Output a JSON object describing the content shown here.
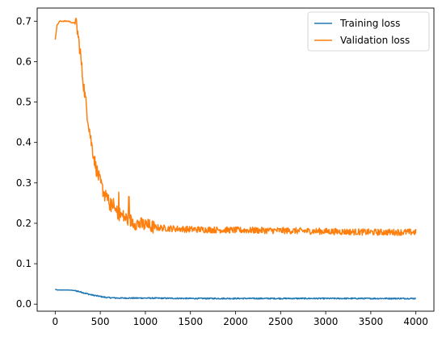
{
  "chart_data": {
    "type": "line",
    "title": "",
    "xlabel": "",
    "ylabel": "",
    "xlim": [
      -200,
      4200
    ],
    "ylim": [
      -0.0175,
      0.7325
    ],
    "xticks": [
      0,
      500,
      1000,
      1500,
      2000,
      2500,
      3000,
      3500,
      4000
    ],
    "xtick_labels": [
      "0",
      "500",
      "1000",
      "1500",
      "2000",
      "2500",
      "3000",
      "3500",
      "4000"
    ],
    "yticks": [
      0.0,
      0.1,
      0.2,
      0.3,
      0.4,
      0.5,
      0.6,
      0.7
    ],
    "ytick_labels": [
      "0.0",
      "0.1",
      "0.2",
      "0.3",
      "0.4",
      "0.5",
      "0.6",
      "0.7"
    ],
    "grid": false,
    "legend_position": "upper right",
    "series": [
      {
        "name": "Training loss",
        "color": "#1f77b4",
        "noise": 0.0015,
        "x": [
          0,
          20,
          50,
          100,
          150,
          200,
          250,
          300,
          350,
          400,
          450,
          500,
          550,
          600,
          700,
          800,
          1000,
          1500,
          2000,
          2500,
          3000,
          3500,
          4000
        ],
        "y": [
          0.037,
          0.035,
          0.035,
          0.035,
          0.035,
          0.034,
          0.032,
          0.029,
          0.026,
          0.023,
          0.021,
          0.019,
          0.017,
          0.016,
          0.015,
          0.015,
          0.015,
          0.014,
          0.014,
          0.014,
          0.014,
          0.014,
          0.014
        ]
      },
      {
        "name": "Validation loss",
        "color": "#ff7f0e",
        "noise": 0.008,
        "x": [
          0,
          20,
          50,
          100,
          150,
          200,
          230,
          250,
          280,
          300,
          350,
          400,
          450,
          500,
          550,
          600,
          650,
          700,
          800,
          900,
          1000,
          1100,
          1200,
          1500,
          2000,
          2500,
          3000,
          3500,
          4000
        ],
        "y": [
          0.655,
          0.69,
          0.7,
          0.7,
          0.7,
          0.695,
          0.7,
          0.67,
          0.62,
          0.57,
          0.48,
          0.4,
          0.34,
          0.3,
          0.27,
          0.25,
          0.235,
          0.225,
          0.21,
          0.2,
          0.195,
          0.19,
          0.188,
          0.185,
          0.183,
          0.182,
          0.18,
          0.178,
          0.178
        ]
      }
    ]
  }
}
